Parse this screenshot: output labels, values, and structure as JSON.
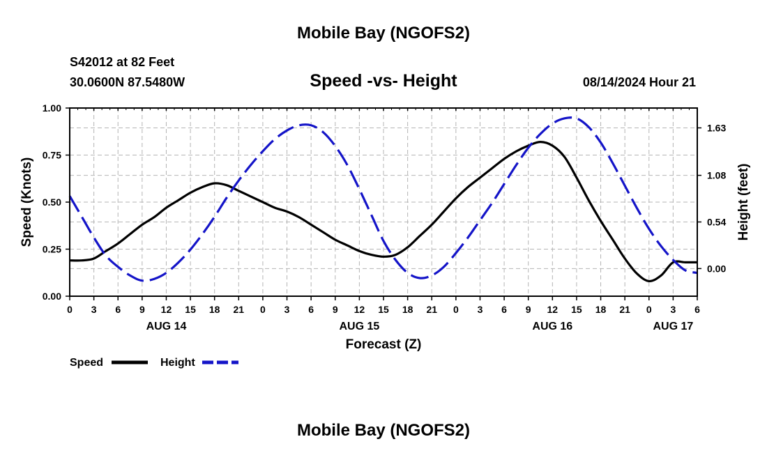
{
  "page": {
    "top_title": "Mobile Bay (NGOFS2)",
    "bottom_title": "Mobile Bay (NGOFS2)"
  },
  "station": {
    "line1": "S42012 at 82 Feet",
    "line2": "30.0600N  87.5480W",
    "date": "08/14/2024 Hour 21"
  },
  "chart_data": {
    "type": "line",
    "title": "Speed -vs- Height",
    "xlabel": "Forecast (Z)",
    "ylabel": "Speed (Knots)",
    "ylabel_right": "Height (feet)",
    "x_unit": "hours since AUG 14 00Z",
    "xlim": [
      0,
      78
    ],
    "ylim": [
      0,
      1.0
    ],
    "ylim_right": [
      -0.32,
      1.86
    ],
    "grid": true,
    "x_ticks": [
      0,
      3,
      6,
      9,
      12,
      15,
      18,
      21,
      24,
      27,
      30,
      33,
      36,
      39,
      42,
      45,
      48,
      51,
      54,
      57,
      60,
      63,
      66,
      69,
      72,
      75,
      78
    ],
    "x_tick_labels": [
      "0",
      "3",
      "6",
      "9",
      "12",
      "15",
      "18",
      "21",
      "0",
      "3",
      "6",
      "9",
      "12",
      "15",
      "18",
      "21",
      "0",
      "3",
      "6",
      "9",
      "12",
      "15",
      "18",
      "21",
      "0",
      "3",
      "6"
    ],
    "day_labels": [
      {
        "x": 12,
        "label": "AUG 14"
      },
      {
        "x": 36,
        "label": "AUG 15"
      },
      {
        "x": 60,
        "label": "AUG 16"
      },
      {
        "x": 75,
        "label": "AUG 17"
      }
    ],
    "y_ticks": [
      0,
      0.25,
      0.5,
      0.75,
      1.0
    ],
    "y_tick_labels": [
      "0.00",
      "0.25",
      "0.50",
      "0.75",
      "1.00"
    ],
    "y_ticks_right": [
      0.0,
      0.54,
      1.08,
      1.63
    ],
    "y_tick_labels_right": [
      "0.00",
      "0.54",
      "1.08",
      "1.63"
    ],
    "legend": {
      "position": "bottom-left",
      "entries": [
        "Speed",
        "Height"
      ]
    },
    "series": [
      {
        "name": "Speed",
        "axis": "left",
        "color": "#000000",
        "style": "solid",
        "x": [
          0,
          1.5,
          3,
          4.5,
          6,
          7.5,
          9,
          10.5,
          12,
          13.5,
          15,
          16.5,
          18,
          19.5,
          21,
          22.5,
          24,
          25.5,
          27,
          28.5,
          30,
          31.5,
          33,
          34.5,
          36,
          37.5,
          39,
          40.5,
          42,
          43.5,
          45,
          46.5,
          48,
          49.5,
          51,
          52.5,
          54,
          55.5,
          57,
          58.5,
          60,
          61.5,
          63,
          64.5,
          66,
          67.5,
          69,
          70.5,
          72,
          73.5,
          75,
          76.5,
          78
        ],
        "values": [
          0.19,
          0.19,
          0.2,
          0.24,
          0.28,
          0.33,
          0.38,
          0.42,
          0.47,
          0.51,
          0.55,
          0.58,
          0.6,
          0.59,
          0.56,
          0.53,
          0.5,
          0.47,
          0.45,
          0.42,
          0.38,
          0.34,
          0.3,
          0.27,
          0.24,
          0.22,
          0.21,
          0.22,
          0.26,
          0.32,
          0.38,
          0.45,
          0.52,
          0.58,
          0.63,
          0.68,
          0.73,
          0.77,
          0.8,
          0.82,
          0.8,
          0.74,
          0.63,
          0.51,
          0.4,
          0.3,
          0.2,
          0.12,
          0.08,
          0.11,
          0.18,
          0.18,
          0.18
        ]
      },
      {
        "name": "Height",
        "axis": "right",
        "color": "#1414c8",
        "style": "dashed",
        "x": [
          0,
          1.5,
          3,
          4.5,
          6,
          7.5,
          9,
          10.5,
          12,
          13.5,
          15,
          16.5,
          18,
          19.5,
          21,
          22.5,
          24,
          25.5,
          27,
          28.5,
          30,
          31.5,
          33,
          34.5,
          36,
          37.5,
          39,
          40.5,
          42,
          43.5,
          45,
          46.5,
          48,
          49.5,
          51,
          52.5,
          54,
          55.5,
          57,
          58.5,
          60,
          61.5,
          63,
          64.5,
          66,
          67.5,
          69,
          70.5,
          72,
          73.5,
          75,
          76.5,
          78
        ],
        "values": [
          0.84,
          0.6,
          0.36,
          0.15,
          0.02,
          -0.08,
          -0.14,
          -0.12,
          -0.05,
          0.07,
          0.22,
          0.4,
          0.6,
          0.82,
          1.02,
          1.2,
          1.36,
          1.5,
          1.6,
          1.66,
          1.66,
          1.58,
          1.42,
          1.2,
          0.92,
          0.62,
          0.32,
          0.1,
          -0.05,
          -0.11,
          -0.08,
          0.02,
          0.18,
          0.36,
          0.56,
          0.76,
          0.98,
          1.2,
          1.4,
          1.56,
          1.68,
          1.74,
          1.74,
          1.64,
          1.46,
          1.22,
          0.96,
          0.7,
          0.46,
          0.26,
          0.1,
          -0.02,
          -0.05
        ]
      }
    ]
  }
}
